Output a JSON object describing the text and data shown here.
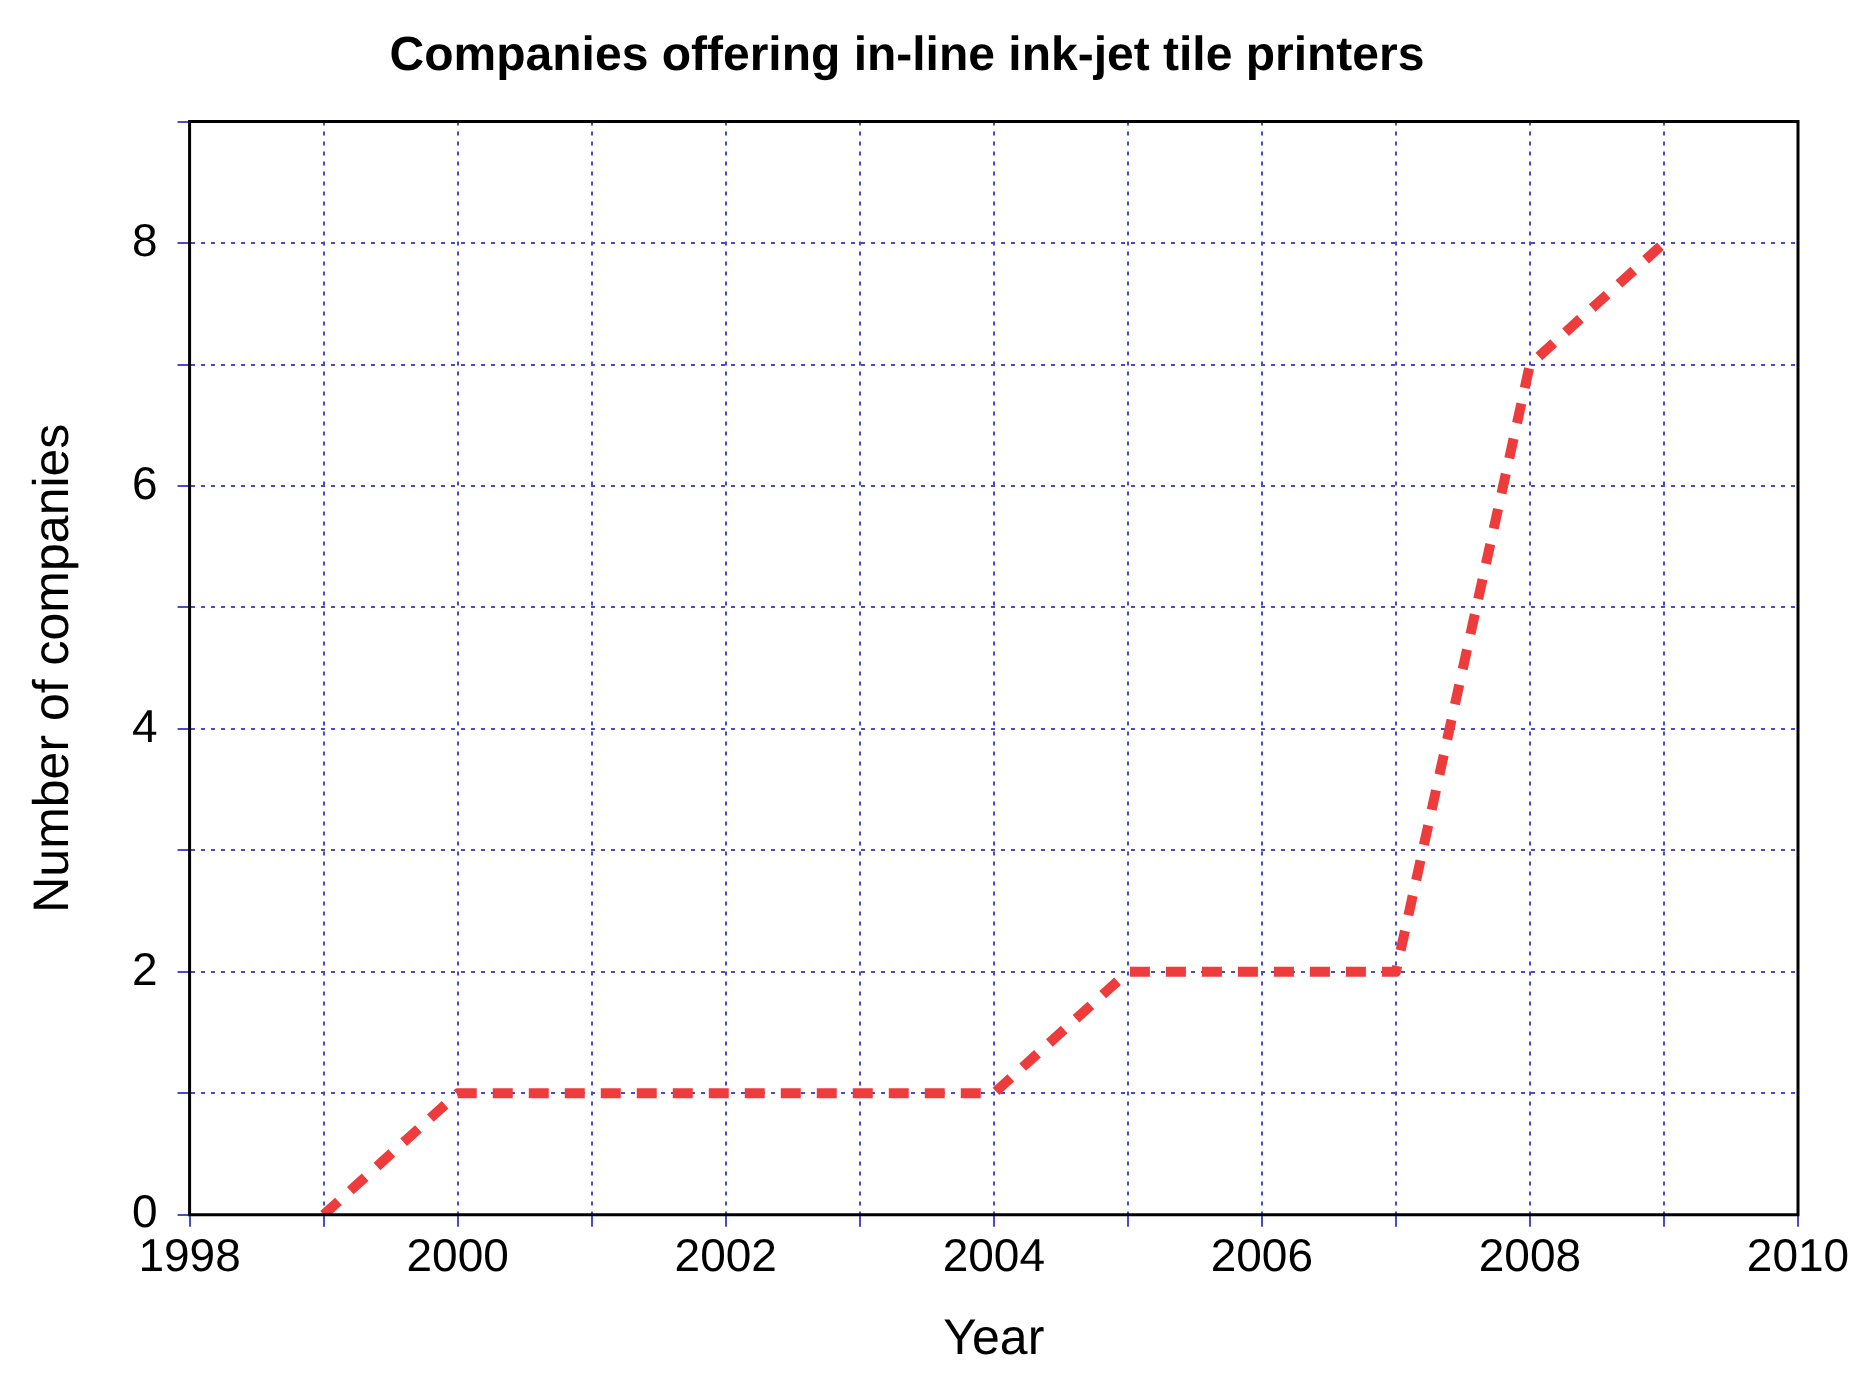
{
  "chart_data": {
    "type": "line",
    "title": "Companies offering in-line ink-jet tile printers",
    "xlabel": "Year",
    "ylabel": "Number of companies",
    "x": [
      1999,
      2000,
      2001,
      2002,
      2003,
      2004,
      2005,
      2006,
      2007,
      2008,
      2009
    ],
    "series": [
      {
        "color": "#ee3b3b",
        "values": [
          0,
          1,
          1,
          1,
          1,
          1,
          2,
          2,
          2,
          7,
          8
        ]
      }
    ],
    "xlim": [
      1998,
      2010
    ],
    "xticks": [
      1998,
      {
        "value": 1999,
        "label": null
      },
      2000,
      {
        "value": 2001,
        "label": null
      },
      2002,
      {
        "value": 2003,
        "label": null
      },
      2004,
      {
        "value": 2005,
        "label": null
      },
      2006,
      {
        "value": 2007,
        "label": null
      },
      2008,
      {
        "value": 2009,
        "label": null
      },
      2010
    ],
    "ylim": [
      0,
      9
    ],
    "yticks": [
      0,
      {
        "value": 1,
        "label": null
      },
      2,
      {
        "value": 3,
        "label": null
      },
      4,
      {
        "value": 5,
        "label": null
      },
      6,
      {
        "value": 7,
        "label": null
      },
      8,
      {
        "value": 9,
        "label": null
      }
    ],
    "grid": true,
    "legend": false,
    "marker": "none",
    "line_style": "dashed"
  }
}
